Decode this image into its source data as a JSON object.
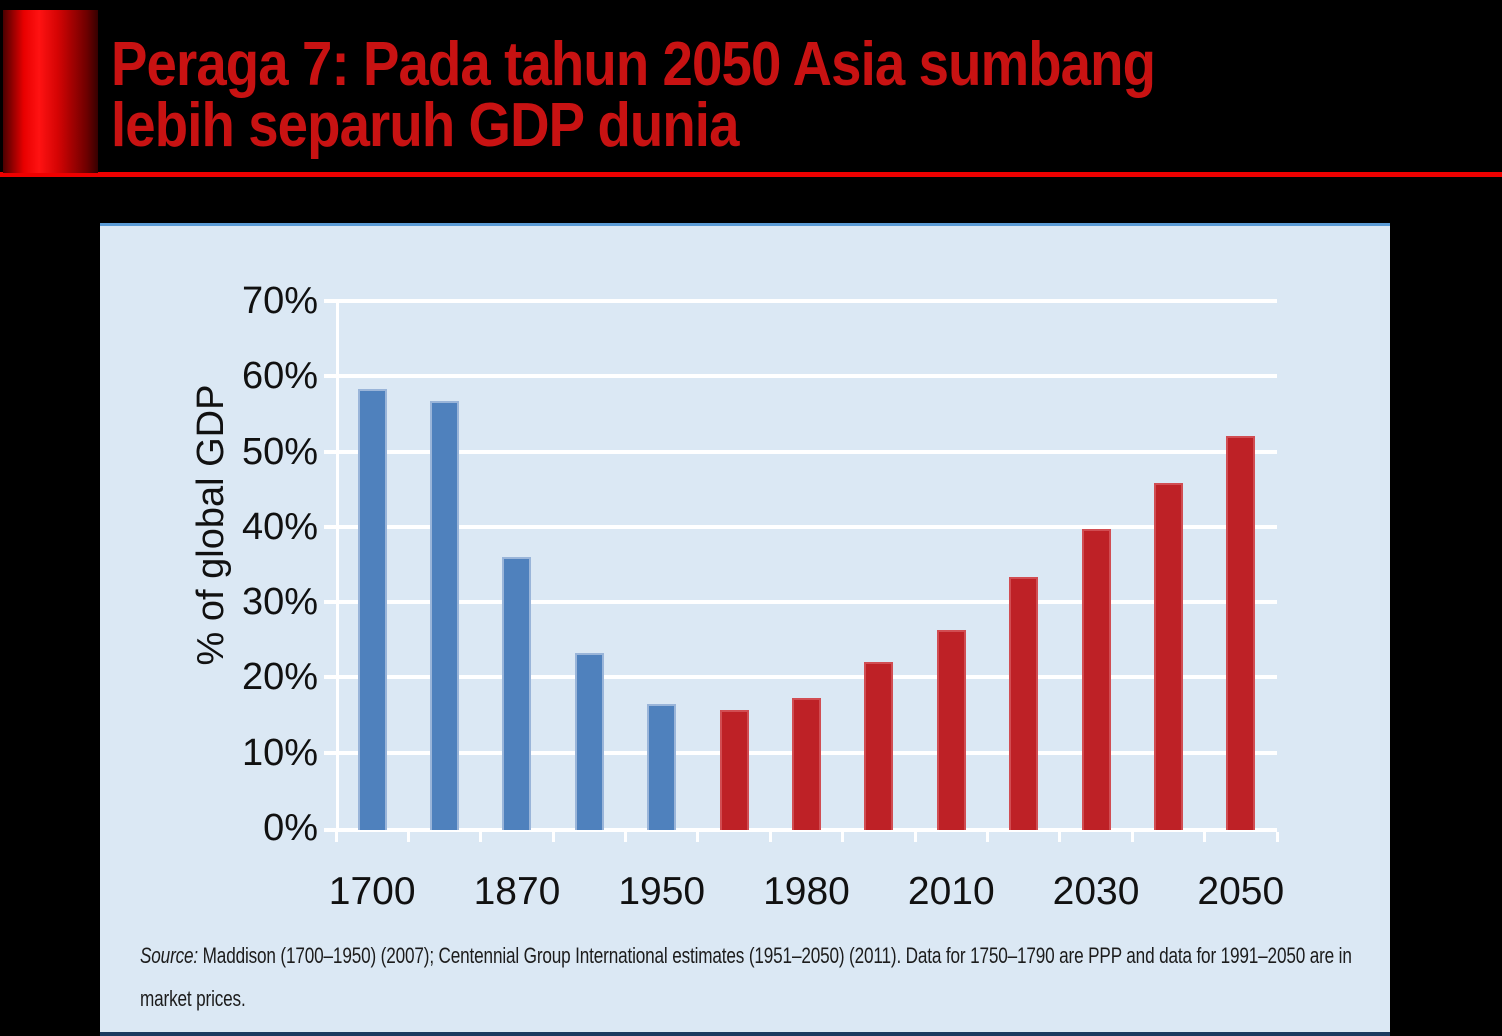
{
  "slide": {
    "title_line1": "Peraga 7: Pada tahun 2050 Asia sumbang",
    "title_line2": "lebih separuh GDP dunia",
    "title_color": "#c81212",
    "accent_rule_color": "#ee0000",
    "background_color": "#000000"
  },
  "chart_data": {
    "type": "bar",
    "title": "",
    "xlabel": "",
    "ylabel": "% of global GDP",
    "ylim": [
      0,
      70
    ],
    "grid": true,
    "legend_position": "none",
    "panel_background": "#dbe8f4",
    "gridline_color": "#ffffff",
    "yticks": [
      {
        "value": 0,
        "label": "0%"
      },
      {
        "value": 10,
        "label": "10%"
      },
      {
        "value": 20,
        "label": "20%"
      },
      {
        "value": 30,
        "label": "30%"
      },
      {
        "value": 40,
        "label": "40%"
      },
      {
        "value": 50,
        "label": "50%"
      },
      {
        "value": 60,
        "label": "60%"
      },
      {
        "value": 70,
        "label": "70%"
      }
    ],
    "series_colors": {
      "blue": {
        "fill": "#4f81bd",
        "edge": "#9ab5d9"
      },
      "red": {
        "fill": "#be2126",
        "edge": "#d14d52"
      }
    },
    "bars": [
      {
        "label": "1700",
        "value": 58.5,
        "color": "blue"
      },
      {
        "label": "",
        "value": 57.0,
        "color": "blue"
      },
      {
        "label": "1870",
        "value": 36.3,
        "color": "blue"
      },
      {
        "label": "",
        "value": 23.5,
        "color": "blue"
      },
      {
        "label": "1950",
        "value": 16.7,
        "color": "blue"
      },
      {
        "label": "",
        "value": 16.0,
        "color": "red"
      },
      {
        "label": "1980",
        "value": 17.5,
        "color": "red"
      },
      {
        "label": "",
        "value": 22.3,
        "color": "red"
      },
      {
        "label": "2010",
        "value": 26.5,
        "color": "red"
      },
      {
        "label": "",
        "value": 33.6,
        "color": "red"
      },
      {
        "label": "2030",
        "value": 40.0,
        "color": "red"
      },
      {
        "label": "",
        "value": 46.1,
        "color": "red"
      },
      {
        "label": "2050",
        "value": 52.3,
        "color": "red"
      }
    ]
  },
  "source": {
    "prefix": "Source:",
    "line1": "Maddison (1700–1950) (2007); Centennial Group International estimates (1951–2050) (2011). Data for 1750–1790 are PPP and data for 1991–2050 are in",
    "line2": "market prices."
  }
}
